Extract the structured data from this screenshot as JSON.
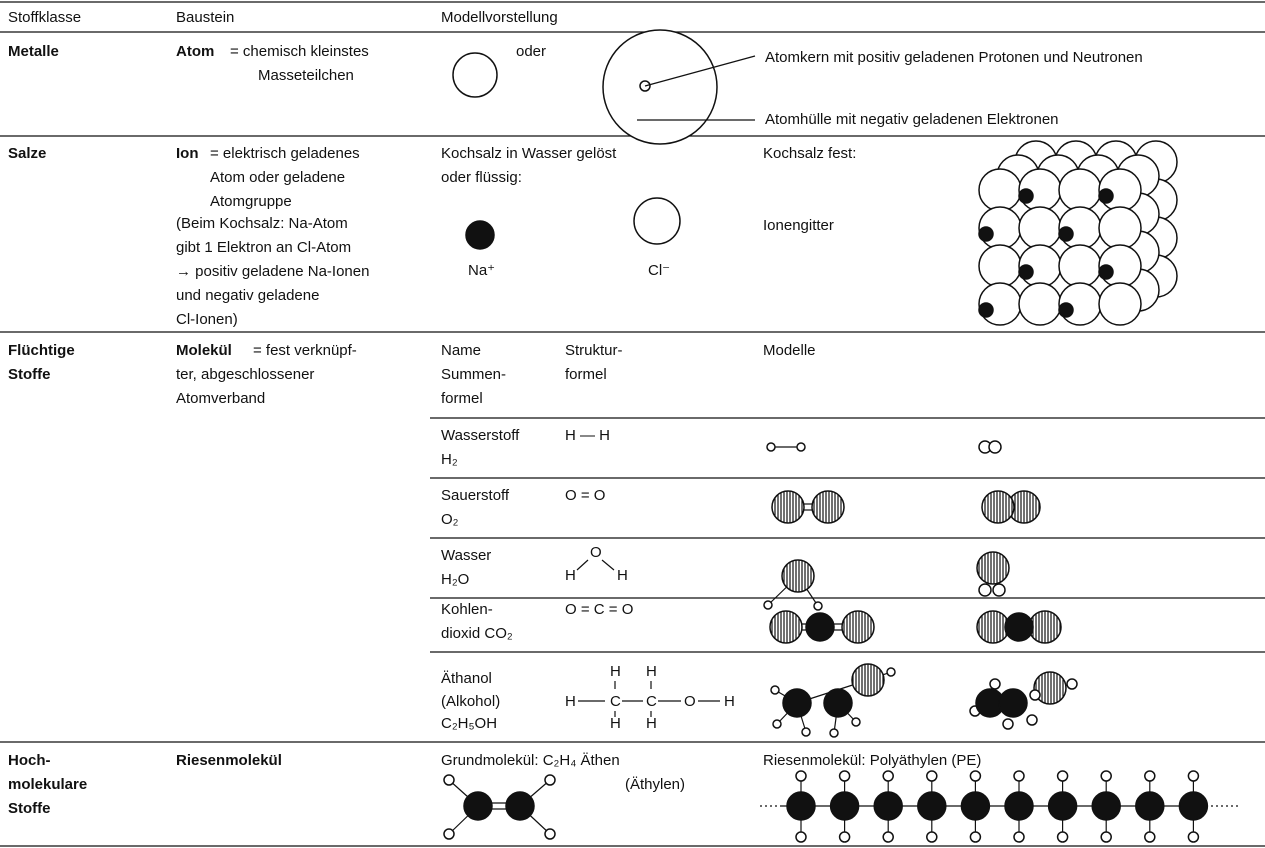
{
  "header": {
    "columns": [
      "Stoffklasse",
      "Baustein",
      "Modellvorstellung"
    ]
  },
  "metalle": {
    "class": "Metalle",
    "term": "Atom",
    "definition": [
      "= chemisch kleinstes",
      "Masseteilchen"
    ],
    "or": "oder",
    "nucleus": "Atomkern mit positiv geladenen Protonen und Neutronen",
    "shell": "Atomhülle mit negativ geladenen Elektronen"
  },
  "salze": {
    "class": "Salze",
    "term": "Ion",
    "definition": [
      "= elektrisch geladenes",
      "Atom oder geladene",
      "Atomgruppe"
    ],
    "note": [
      "(Beim Kochsalz: Na-Atom",
      "gibt 1 Elektron an Cl-Atom",
      "→ positiv geladene Na-Ionen",
      "und negativ geladene",
      "Cl-Ionen)"
    ],
    "solution": [
      "Kochsalz in Wasser gelöst",
      "oder flüssig:"
    ],
    "sodium": "Na⁺",
    "chloride": "Cl⁻",
    "solid": "Kochsalz fest:",
    "lattice": "Ionengitter"
  },
  "fluechtige": {
    "class": [
      "Flüchtige",
      "Stoffe"
    ],
    "term": "Molekül",
    "definition": [
      "= fest verknüpf-",
      "ter, abgeschlossener",
      "Atomverband"
    ],
    "headers": {
      "name": [
        "Name",
        "Summen-",
        "formel"
      ],
      "structure": [
        "Struktur-",
        "formel"
      ],
      "models": "Modelle"
    },
    "molecules": [
      {
        "name": [
          "Wasserstoff",
          "H₂"
        ],
        "structure": [
          "H — H"
        ]
      },
      {
        "name": [
          "Sauerstoff",
          "O₂"
        ],
        "structure": [
          "O = O"
        ]
      },
      {
        "name": [
          "Wasser",
          "H₂O"
        ],
        "structure": [
          "O",
          "H",
          "H"
        ]
      },
      {
        "name": [
          "Kohlen-",
          "dioxid CO₂"
        ],
        "structure": [
          "O = C = O"
        ]
      },
      {
        "name": [
          "Äthanol",
          "(Alkohol)",
          "C₂H₅OH"
        ],
        "structure": [
          "H",
          "H",
          "H",
          "C",
          "C",
          "O",
          "H",
          "H",
          "H"
        ]
      }
    ]
  },
  "hoch": {
    "class": [
      "Hoch-",
      "molekulare",
      "Stoffe"
    ],
    "term": "Riesenmolekül",
    "base": "Grundmolekül: C₂H₄ Äthen",
    "base_alt": "(Äthylen)",
    "polymer": "Riesenmolekül: Polyäthylen (PE)"
  }
}
